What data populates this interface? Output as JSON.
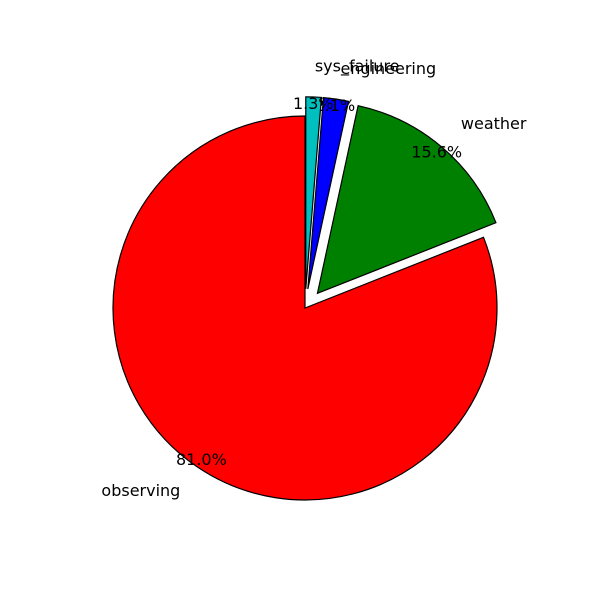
{
  "chart_data": {
    "type": "pie",
    "title": "",
    "start_angle_deg": 90,
    "direction": "counterclockwise",
    "slices": [
      {
        "label": "observing",
        "value": 81.0,
        "pct_label": "81.0%",
        "color": "#ff0000",
        "exploded": false
      },
      {
        "label": "weather",
        "value": 15.6,
        "pct_label": "15.6%",
        "color": "#008000",
        "exploded": true
      },
      {
        "label": "engineering",
        "value": 2.1,
        "pct_label": "2.1%",
        "color": "#0000ff",
        "exploded": true
      },
      {
        "label": "sys_failure",
        "value": 1.3,
        "pct_label": "1.3%",
        "color": "#00bfbf",
        "exploded": true
      }
    ]
  }
}
